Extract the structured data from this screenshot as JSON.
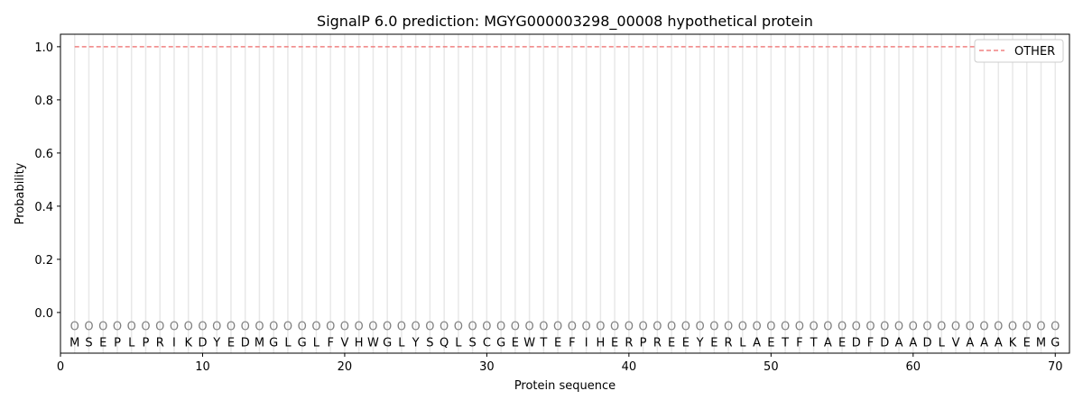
{
  "chart_data": {
    "type": "line",
    "title": "SignalP 6.0 prediction: MGYG000003298_00008 hypothetical protein",
    "xlabel": "Protein sequence",
    "ylabel": "Probability",
    "xlim": [
      0,
      71
    ],
    "ylim": [
      -0.153,
      1.047
    ],
    "x_ticks": [
      0,
      10,
      20,
      30,
      40,
      50,
      60,
      70
    ],
    "y_ticks": [
      0.0,
      0.2,
      0.4,
      0.6,
      0.8,
      1.0
    ],
    "y_tick_labels": [
      "0.0",
      "0.2",
      "0.4",
      "0.6",
      "0.8",
      "1.0"
    ],
    "grid": "vertical lines at each residue",
    "legend_position": "top-right",
    "sequence": [
      "M",
      "S",
      "E",
      "P",
      "L",
      "P",
      "R",
      "I",
      "K",
      "D",
      "Y",
      "E",
      "D",
      "M",
      "G",
      "L",
      "G",
      "L",
      "F",
      "V",
      "H",
      "W",
      "G",
      "L",
      "Y",
      "S",
      "Q",
      "L",
      "S",
      "C",
      "G",
      "E",
      "W",
      "T",
      "E",
      "F",
      "I",
      "H",
      "E",
      "R",
      "P",
      "R",
      "E",
      "E",
      "Y",
      "E",
      "R",
      "L",
      "A",
      "E",
      "T",
      "F",
      "T",
      "A",
      "E",
      "D",
      "F",
      "D",
      "A",
      "A",
      "D",
      "L",
      "V",
      "A",
      "A",
      "A",
      "K",
      "E",
      "M",
      "G"
    ],
    "predicted_label": "O",
    "series": [
      {
        "name": "OTHER",
        "color": "#f08080",
        "style": "dashed",
        "x_start": 1,
        "x_end": 70,
        "value": 1.0
      }
    ]
  }
}
